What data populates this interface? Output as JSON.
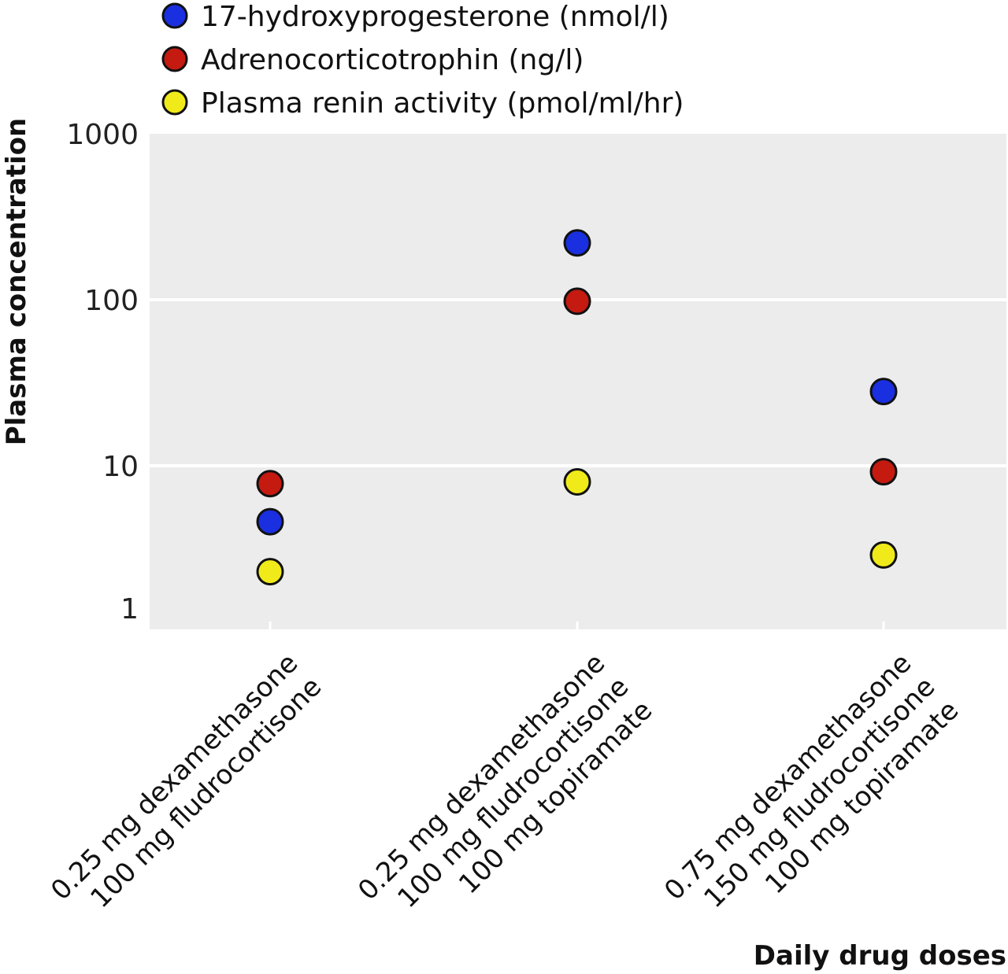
{
  "chart_data": {
    "type": "scatter",
    "yscale": "log",
    "ylim": [
      1,
      1000
    ],
    "yticks": [
      "1",
      "10",
      "100",
      "1000"
    ],
    "grid": true,
    "legend_position": "top-left",
    "xlabel": "Daily drug doses",
    "ylabel": "Plasma concentration",
    "categories": [
      [
        "0.25 mg dexamethasone",
        "100 mg fludrocortisone"
      ],
      [
        "0.25 mg dexamethasone",
        "100 mg fludrocortisone",
        "100 mg topiramate"
      ],
      [
        "0.75 mg dexamethasone",
        "150 mg fludrocortisone",
        "100 mg topiramate"
      ]
    ],
    "series": [
      {
        "name": "17-hydroxyprogesterone (nmol/l)",
        "color": "#1a2fe0",
        "values": [
          4.6,
          220,
          28
        ]
      },
      {
        "name": "Adrenocorticotrophin (ng/l)",
        "color": "#c41a10",
        "values": [
          7.8,
          98,
          9.2
        ]
      },
      {
        "name": "Plasma renin activity (pmol/ml/hr)",
        "color": "#f0ea1a",
        "values": [
          2.3,
          8.0,
          2.9
        ]
      }
    ]
  }
}
